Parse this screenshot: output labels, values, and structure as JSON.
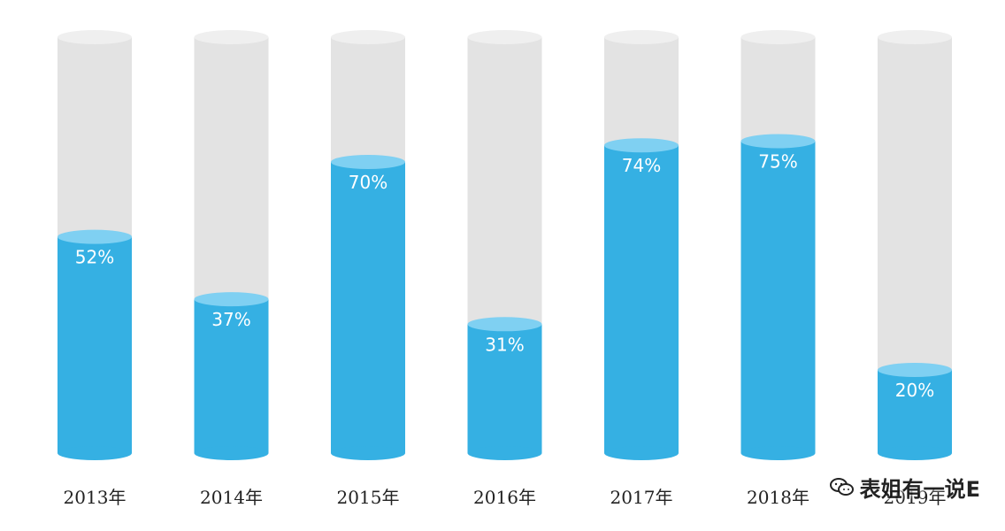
{
  "chart_data": {
    "type": "bar",
    "categories": [
      "2013年",
      "2014年",
      "2015年",
      "2016年",
      "2017年",
      "2018年",
      "2019年"
    ],
    "values": [
      52,
      37,
      70,
      31,
      74,
      75,
      20
    ],
    "value_labels": [
      "52%",
      "37%",
      "70%",
      "31%",
      "74%",
      "75%",
      "20%"
    ],
    "ylim": [
      0,
      100
    ],
    "grid": false,
    "style": "cylinder-fill",
    "colors": {
      "fill": "#35b0e3",
      "fill_top": "#7fd0f2",
      "empty": "#e3e3e3",
      "empty_top": "#efefef",
      "category_text": "#222222",
      "value_text": "#ffffff"
    }
  },
  "watermark": {
    "text": "表姐有一说E",
    "icon": "wechat-icon"
  }
}
